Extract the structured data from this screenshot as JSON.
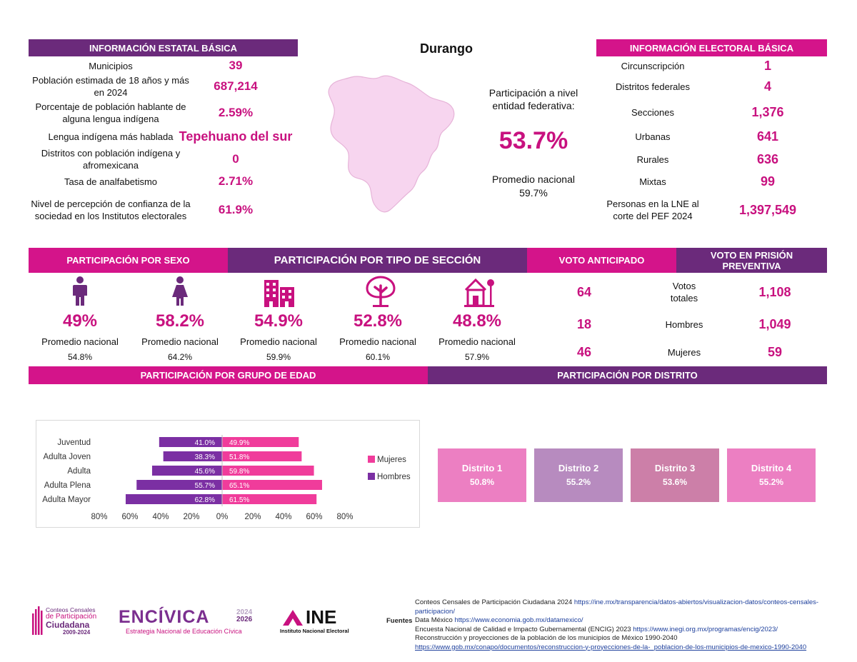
{
  "title": "Durango",
  "estatal": {
    "header": "INFORMACIÓN ESTATAL BÁSICA",
    "rows": [
      {
        "label": "Municipios",
        "value": "39"
      },
      {
        "label": "Población estimada de 18 años y más en 2024",
        "value": "687,214"
      },
      {
        "label": "Porcentaje de población hablante de alguna lengua indígena",
        "value": "2.59%"
      },
      {
        "label": "Lengua indígena más hablada",
        "value": "Tepehuano del sur"
      },
      {
        "label": "Distritos con población indígena y afromexicana",
        "value": "0"
      },
      {
        "label": "Tasa de analfabetismo",
        "value": "2.71%"
      },
      {
        "label": "Nivel de percepción de confianza de la sociedad en los Institutos electorales",
        "value": "61.9%"
      }
    ]
  },
  "participacion_entidad": {
    "label": "Participación a nivel entidad federativa:",
    "value": "53.7%",
    "promedio_label": "Promedio nacional",
    "promedio_value": "59.7%"
  },
  "electoral": {
    "header": "INFORMACIÓN ELECTORAL BÁSICA",
    "rows": [
      {
        "label": "Circunscripción",
        "value": "1"
      },
      {
        "label": "Distritos federales",
        "value": "4"
      },
      {
        "label": "Secciones",
        "value": "1,376"
      },
      {
        "label": "Urbanas",
        "value": "641"
      },
      {
        "label": "Rurales",
        "value": "636"
      },
      {
        "label": "Mixtas",
        "value": "99"
      },
      {
        "label": "Personas en la LNE al corte del PEF 2024",
        "value": "1,397,549"
      }
    ]
  },
  "section_headers": {
    "sexo": "PARTICIPACIÓN POR SEXO",
    "tipo_seccion": "PARTICIPACIÓN POR TIPO DE SECCIÓN",
    "voto_anticipado": "VOTO ANTICIPADO",
    "prision": "VOTO EN PRISIÓN PREVENTIVA",
    "edad": "PARTICIPACIÓN POR GRUPO DE EDAD",
    "distrito": "PARTICIPACIÓN POR DISTRITO"
  },
  "cards": [
    {
      "icon": "man-icon",
      "pct": "49%",
      "prom_label": "Promedio nacional",
      "prom": "54.8%"
    },
    {
      "icon": "woman-icon",
      "pct": "58.2%",
      "prom_label": "Promedio nacional",
      "prom": "64.2%"
    },
    {
      "icon": "buildings-icon",
      "pct": "54.9%",
      "prom_label": "Promedio nacional",
      "prom": "59.9%"
    },
    {
      "icon": "tree-icon",
      "pct": "52.8%",
      "prom_label": "Promedio nacional",
      "prom": "60.1%"
    },
    {
      "icon": "house-tree-icon",
      "pct": "48.8%",
      "prom_label": "Promedio nacional",
      "prom": "57.9%"
    }
  ],
  "voto": {
    "rows": [
      {
        "anticipado": "64",
        "label": "Votos totales",
        "prision": "1,108"
      },
      {
        "anticipado": "18",
        "label": "Hombres",
        "prision": "1,049"
      },
      {
        "anticipado": "46",
        "label": "Mujeres",
        "prision": "59"
      }
    ]
  },
  "colors": {
    "purple": "#6b2a7b",
    "pink": "#d4148a",
    "value_pink": "#c8117f",
    "mujeres": "#f03c9b",
    "hombres": "#7b2fa3"
  },
  "chart_data": {
    "type": "bar",
    "orientation": "horizontal-diverging",
    "categories": [
      "Juventud",
      "Adulta Joven",
      "Adulta",
      "Adulta Plena",
      "Adulta Mayor"
    ],
    "series": [
      {
        "name": "Hombres",
        "values": [
          41.0,
          38.3,
          45.6,
          55.7,
          62.8
        ],
        "labels": [
          "41.0%",
          "38.3%",
          "45.6%",
          "55.7%",
          "62.8%"
        ]
      },
      {
        "name": "Mujeres",
        "values": [
          49.9,
          51.8,
          59.8,
          65.1,
          61.5
        ],
        "labels": [
          "49.9%",
          "51.8%",
          "59.8%",
          "65.1%",
          "61.5%"
        ]
      }
    ],
    "xlim": [
      -80,
      80
    ],
    "ticks": [
      "80%",
      "60%",
      "40%",
      "20%",
      "0%",
      "20%",
      "40%",
      "60%",
      "80%"
    ],
    "legend": [
      "Mujeres",
      "Hombres"
    ],
    "legend_position": "right"
  },
  "distritos": [
    {
      "name": "Distrito 1",
      "value": "50.8%",
      "color": "#ec7fc2"
    },
    {
      "name": "Distrito 2",
      "value": "55.2%",
      "color": "#b78bbf"
    },
    {
      "name": "Distrito 3",
      "value": "53.6%",
      "color": "#cc7fa8"
    },
    {
      "name": "Distrito 4",
      "value": "55.2%",
      "color": "#ec7fc2"
    }
  ],
  "logos": {
    "conteos": {
      "line1": "Conteos Censales",
      "line2": "de Participación",
      "line3": "Ciudadana",
      "years": "2009-2024"
    },
    "encivica": {
      "name": "ENCÍVICA",
      "years_top": "2024",
      "years_bottom": "2026",
      "subtitle": "Estrategia Nacional de Educación Cívica"
    },
    "ine": {
      "name": "INE",
      "subtitle": "Instituto Nacional Electoral"
    }
  },
  "fuentes": {
    "label": "Fuentes",
    "lines": [
      {
        "text": "Conteos Censales de Participación Ciudadana 2024 ",
        "link": "https://ine.mx/transparencia/datos-abiertos/visualizacion-datos/conteos-censales-participacion/"
      },
      {
        "text": "Data México ",
        "link": "https://www.economia.gob.mx/datamexico/"
      },
      {
        "text": "Encuesta Nacional de Calidad e Impacto Gubernamental (ENCIG) 2023 ",
        "link": "https://www.inegi.org.mx/programas/encig/2023/"
      },
      {
        "text": "Reconstrucción y proyecciones de la población de los municipios de México 1990-2040 ",
        "link": "https://www.gob.mx/conapo/documentos/reconstruccion-y-proyecciones-de-la-_poblacion-de-los-municipios-de-mexico-1990-2040"
      }
    ]
  }
}
